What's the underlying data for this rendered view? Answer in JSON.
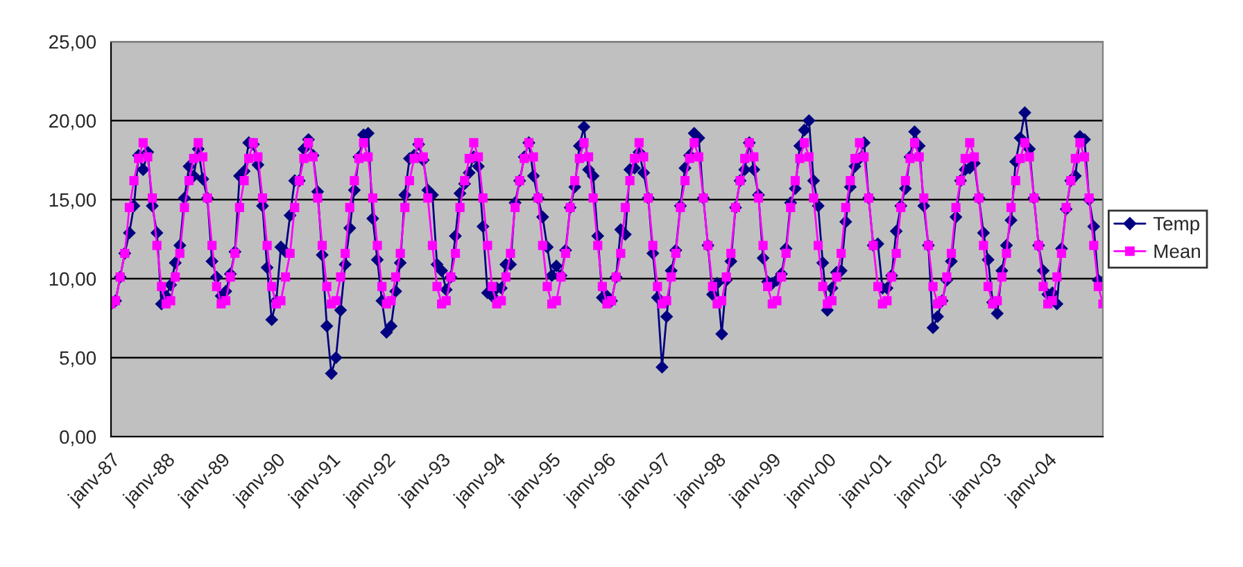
{
  "chart_data": {
    "type": "line",
    "categories": [
      "janv-87",
      null,
      null,
      null,
      null,
      null,
      null,
      null,
      null,
      null,
      null,
      null,
      "janv-88",
      null,
      null,
      null,
      null,
      null,
      null,
      null,
      null,
      null,
      null,
      null,
      "janv-89",
      null,
      null,
      null,
      null,
      null,
      null,
      null,
      null,
      null,
      null,
      null,
      "janv-90",
      null,
      null,
      null,
      null,
      null,
      null,
      null,
      null,
      null,
      null,
      null,
      "janv-91",
      null,
      null,
      null,
      null,
      null,
      null,
      null,
      null,
      null,
      null,
      null,
      "janv-92",
      null,
      null,
      null,
      null,
      null,
      null,
      null,
      null,
      null,
      null,
      null,
      "janv-93",
      null,
      null,
      null,
      null,
      null,
      null,
      null,
      null,
      null,
      null,
      null,
      "janv-94",
      null,
      null,
      null,
      null,
      null,
      null,
      null,
      null,
      null,
      null,
      null,
      "janv-95",
      null,
      null,
      null,
      null,
      null,
      null,
      null,
      null,
      null,
      null,
      null,
      "janv-96",
      null,
      null,
      null,
      null,
      null,
      null,
      null,
      null,
      null,
      null,
      null,
      "janv-97",
      null,
      null,
      null,
      null,
      null,
      null,
      null,
      null,
      null,
      null,
      null,
      "janv-98",
      null,
      null,
      null,
      null,
      null,
      null,
      null,
      null,
      null,
      null,
      null,
      "janv-99",
      null,
      null,
      null,
      null,
      null,
      null,
      null,
      null,
      null,
      null,
      null,
      "janv-00",
      null,
      null,
      null,
      null,
      null,
      null,
      null,
      null,
      null,
      null,
      null,
      "janv-01",
      null,
      null,
      null,
      null,
      null,
      null,
      null,
      null,
      null,
      null,
      null,
      "janv-02",
      null,
      null,
      null,
      null,
      null,
      null,
      null,
      null,
      null,
      null,
      null,
      "janv-03",
      null,
      null,
      null,
      null,
      null,
      null,
      null,
      null,
      null,
      null,
      null,
      "janv-04",
      null,
      null,
      null,
      null,
      null,
      null,
      null,
      null,
      null,
      null,
      null,
      null
    ],
    "series": [
      {
        "name": "Temp",
        "color": "#000080",
        "marker": "diamond",
        "values": [
          8.4,
          8.6,
          10.1,
          11.6,
          12.9,
          14.6,
          17.8,
          16.9,
          18.0,
          14.6,
          12.9,
          8.4,
          8.9,
          9.6,
          11.0,
          12.1,
          15.1,
          17.1,
          16.5,
          18.2,
          16.3,
          15.1,
          11.1,
          10.1,
          8.9,
          9.2,
          10.3,
          11.7,
          16.5,
          16.8,
          18.6,
          18.5,
          17.2,
          14.6,
          10.7,
          7.4,
          8.6,
          12.0,
          11.7,
          14.0,
          16.2,
          16.2,
          18.2,
          18.8,
          17.8,
          15.5,
          11.5,
          7.0,
          4.0,
          5.0,
          8.0,
          10.9,
          13.2,
          15.6,
          17.7,
          19.1,
          19.2,
          13.8,
          11.2,
          8.6,
          6.6,
          7.0,
          9.2,
          11.0,
          15.3,
          17.6,
          17.8,
          18.5,
          17.5,
          15.6,
          15.3,
          10.9,
          10.5,
          9.3,
          10.1,
          12.7,
          15.4,
          16.0,
          16.7,
          17.7,
          17.1,
          13.3,
          9.1,
          8.9,
          9.4,
          9.4,
          10.9,
          10.9,
          14.8,
          16.2,
          17.7,
          18.6,
          16.5,
          15.1,
          13.9,
          12.0,
          10.2,
          10.8,
          10.2,
          11.8,
          14.5,
          15.8,
          18.4,
          19.6,
          16.9,
          16.5,
          12.7,
          8.8,
          8.9,
          8.6,
          10.1,
          13.1,
          12.8,
          16.9,
          17.0,
          18.0,
          16.7,
          15.1,
          11.6,
          8.8,
          4.4,
          7.6,
          10.5,
          11.8,
          14.6,
          17.0,
          17.8,
          19.2,
          18.9,
          15.1,
          12.1,
          9.0,
          9.7,
          6.5,
          9.9,
          11.1,
          14.5,
          16.2,
          16.9,
          18.6,
          16.9,
          15.3,
          11.3,
          9.8,
          9.7,
          9.9,
          10.3,
          11.9,
          14.8,
          15.7,
          18.4,
          19.4,
          20.0,
          16.2,
          14.6,
          11.0,
          8.0,
          9.4,
          10.4,
          10.5,
          13.6,
          15.8,
          17.1,
          17.6,
          18.6,
          15.1,
          12.1,
          12.2,
          9.4,
          9.4,
          10.2,
          13.0,
          14.6,
          15.7,
          17.7,
          19.3,
          18.4,
          14.6,
          12.1,
          6.9,
          7.6,
          8.6,
          9.9,
          11.1,
          13.9,
          16.2,
          16.9,
          17.0,
          17.3,
          15.1,
          12.9,
          11.2,
          8.5,
          7.8,
          10.5,
          12.1,
          13.7,
          17.4,
          18.9,
          20.5,
          18.2,
          15.1,
          12.1,
          10.5,
          9.0,
          9.1,
          8.4,
          11.9,
          14.4,
          16.2,
          16.5,
          19.0,
          18.8,
          15.0,
          13.3,
          9.9,
          9.8
        ]
      },
      {
        "name": "Mean",
        "color": "#ff00ff",
        "marker": "square",
        "values": [
          8.4,
          8.6,
          10.1,
          11.6,
          14.5,
          16.2,
          17.6,
          18.6,
          17.7,
          15.1,
          12.1,
          9.5,
          8.4,
          8.6,
          10.1,
          11.6,
          14.5,
          16.2,
          17.6,
          18.6,
          17.7,
          15.1,
          12.1,
          9.5,
          8.4,
          8.6,
          10.1,
          11.6,
          14.5,
          16.2,
          17.6,
          18.6,
          17.7,
          15.1,
          12.1,
          9.5,
          8.4,
          8.6,
          10.1,
          11.6,
          14.5,
          16.2,
          17.6,
          18.6,
          17.7,
          15.1,
          12.1,
          9.5,
          8.4,
          8.6,
          10.1,
          11.6,
          14.5,
          16.2,
          17.6,
          18.6,
          17.7,
          15.1,
          12.1,
          9.5,
          8.4,
          8.6,
          10.1,
          11.6,
          14.5,
          16.2,
          17.6,
          18.6,
          17.7,
          15.1,
          12.1,
          9.5,
          8.4,
          8.6,
          10.1,
          11.6,
          14.5,
          16.2,
          17.6,
          18.6,
          17.7,
          15.1,
          12.1,
          9.5,
          8.4,
          8.6,
          10.1,
          11.6,
          14.5,
          16.2,
          17.6,
          18.6,
          17.7,
          15.1,
          12.1,
          9.5,
          8.4,
          8.6,
          10.1,
          11.6,
          14.5,
          16.2,
          17.6,
          18.6,
          17.7,
          15.1,
          12.1,
          9.5,
          8.4,
          8.6,
          10.1,
          11.6,
          14.5,
          16.2,
          17.6,
          18.6,
          17.7,
          15.1,
          12.1,
          9.5,
          8.4,
          8.6,
          10.1,
          11.6,
          14.5,
          16.2,
          17.6,
          18.6,
          17.7,
          15.1,
          12.1,
          9.5,
          8.4,
          8.6,
          10.1,
          11.6,
          14.5,
          16.2,
          17.6,
          18.6,
          17.7,
          15.1,
          12.1,
          9.5,
          8.4,
          8.6,
          10.1,
          11.6,
          14.5,
          16.2,
          17.6,
          18.6,
          17.7,
          15.1,
          12.1,
          9.5,
          8.4,
          8.6,
          10.1,
          11.6,
          14.5,
          16.2,
          17.6,
          18.6,
          17.7,
          15.1,
          12.1,
          9.5,
          8.4,
          8.6,
          10.1,
          11.6,
          14.5,
          16.2,
          17.6,
          18.6,
          17.7,
          15.1,
          12.1,
          9.5,
          8.4,
          8.6,
          10.1,
          11.6,
          14.5,
          16.2,
          17.6,
          18.6,
          17.7,
          15.1,
          12.1,
          9.5,
          8.4,
          8.6,
          10.1,
          11.6,
          14.5,
          16.2,
          17.6,
          18.6,
          17.7,
          15.1,
          12.1,
          9.5,
          8.4,
          8.6,
          10.1,
          11.6,
          14.5,
          16.2,
          17.6,
          18.6,
          17.7,
          15.1,
          12.1,
          9.5,
          8.4
        ]
      }
    ],
    "ylim": [
      0,
      25
    ],
    "yticks": [
      {
        "value": 0,
        "label": "0,00"
      },
      {
        "value": 5,
        "label": "5,00"
      },
      {
        "value": 10,
        "label": "10,00"
      },
      {
        "value": 15,
        "label": "15,00"
      },
      {
        "value": 20,
        "label": "20,00"
      },
      {
        "value": 25,
        "label": "25,00"
      }
    ],
    "grid": "y",
    "legend": "right"
  }
}
